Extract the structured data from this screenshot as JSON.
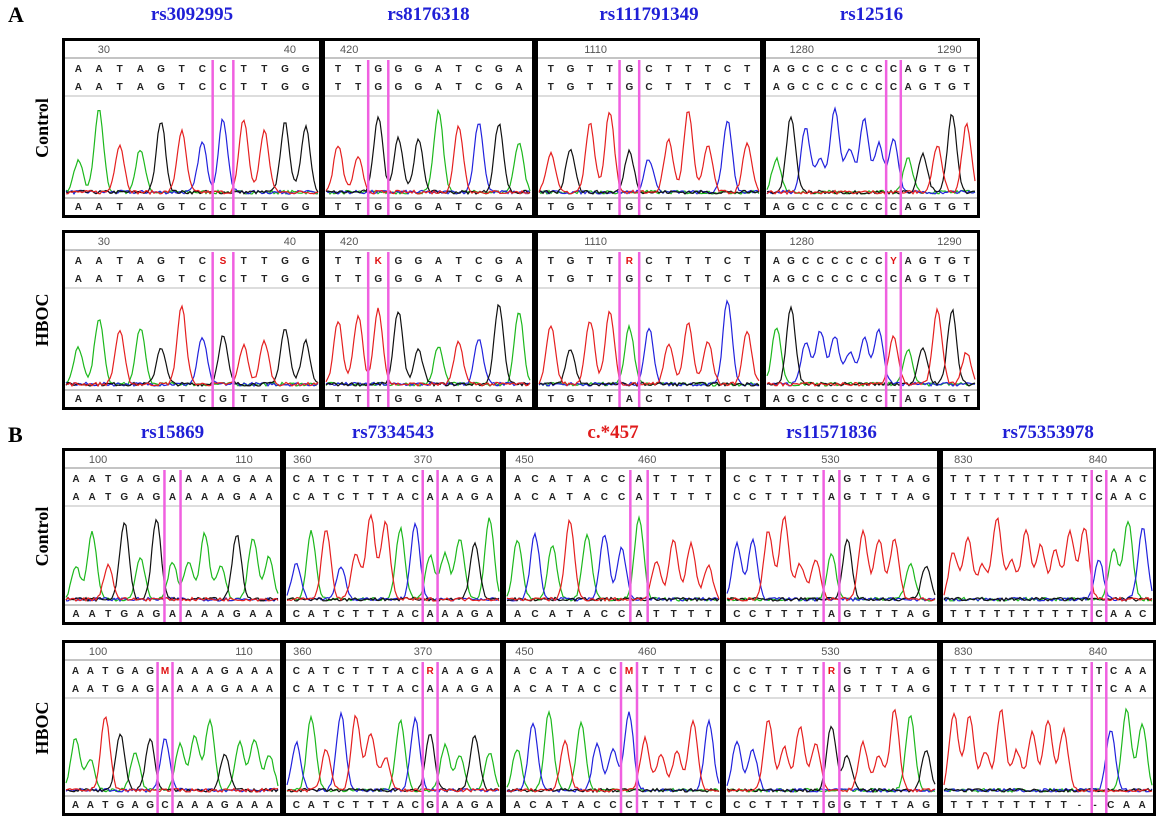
{
  "panels": [
    {
      "label": "A",
      "row_labels": [
        "Control",
        "HBOC"
      ],
      "columns": [
        {
          "title": "rs3092995",
          "title_color": "#1f1fd6",
          "ticks": [
            "30",
            "40"
          ],
          "rows": [
            {
              "top": [
                "AATAGTCCTTGG",
                "AATAGTCCTTGG"
              ],
              "bottom": "AATAGTCCTTGG"
            },
            {
              "top": [
                "AATAGTCSTTGG",
                "AATAGTCCTTGG"
              ],
              "bottom": "AATAGTCGTTGG"
            }
          ]
        },
        {
          "title": "rs8176318",
          "title_color": "#1f1fd6",
          "ticks": [
            "420"
          ],
          "rows": [
            {
              "top": [
                "TTGGGATCGA",
                "TTGGGATCGA"
              ],
              "bottom": "TTGGGATCGA"
            },
            {
              "top": [
                "TTKGGATCGA",
                "TTGGGATCGA"
              ],
              "bottom": "TTTGGATCGA"
            }
          ]
        },
        {
          "title": "rs111791349",
          "title_color": "#1f1fd6",
          "ticks": [
            "1110"
          ],
          "rows": [
            {
              "top": [
                "TGTTGCTTTCT",
                "TGTTGCTTTCT"
              ],
              "bottom": "TGTTGCTTTCT"
            },
            {
              "top": [
                "TGTTRCTTTCT",
                "TGTTGCTTTCT"
              ],
              "bottom": "TGTTACTTTCT"
            }
          ]
        },
        {
          "title": "rs12516",
          "title_color": "#1f1fd6",
          "ticks": [
            "1280",
            "1290"
          ],
          "rows": [
            {
              "top": [
                "AGCCCCCCCAGTGT",
                "AGCCCCCCCAGTGT"
              ],
              "bottom": "AGCCCCCCCAGTGT"
            },
            {
              "top": [
                "AGCCCCCCYAGTGT",
                "AGCCCCCCCAGTGT"
              ],
              "bottom": "AGCCCCCCTAGTGT"
            }
          ]
        }
      ]
    },
    {
      "label": "B",
      "row_labels": [
        "Control",
        "HBOC"
      ],
      "columns": [
        {
          "title": "rs15869",
          "title_color": "#1f1fd6",
          "ticks": [
            "100",
            "110"
          ],
          "rows": [
            {
              "top": [
                "AATGAGAAAAGAA",
                "AATGAGAAAAGAA"
              ],
              "bottom": "AATGAGAAAAGAA"
            },
            {
              "top": [
                "AATGAGMAAAGAAA",
                "AATGAGAAAAGAAA"
              ],
              "bottom": "AATGAGCAAAGAAA"
            }
          ]
        },
        {
          "title": "rs7334543",
          "title_color": "#1f1fd6",
          "ticks": [
            "360",
            "370"
          ],
          "rows": [
            {
              "top": [
                "CATCTTTACAAAGA",
                "CATCTTTACAAAGA"
              ],
              "bottom": "CATCTTTACAAAGA"
            },
            {
              "top": [
                "CATCTTTACRAAGA",
                "CATCTTTACAAAGA"
              ],
              "bottom": "CATCTTTACGAAGA"
            }
          ]
        },
        {
          "title": "c.*457",
          "title_color": "#e01b1b",
          "ticks": [
            "450",
            "460"
          ],
          "rows": [
            {
              "top": [
                "ACATACCATTTT",
                "ACATACCATTTT"
              ],
              "bottom": "ACATACCATTTT"
            },
            {
              "top": [
                "ACATACCMTTTTC",
                "ACATACCATTTTC"
              ],
              "bottom": "ACATACCCTTTTC"
            }
          ]
        },
        {
          "title": "rs11571836",
          "title_color": "#1f1fd6",
          "ticks": [
            "530"
          ],
          "rows": [
            {
              "top": [
                "CCTTTTAGTTTAG",
                "CCTTTTAGTTTAG"
              ],
              "bottom": "CCTTTTAGTTTAG"
            },
            {
              "top": [
                "CCTTTTRGTTTAG",
                "CCTTTTAGTTTAG"
              ],
              "bottom": "CCTTTTGGTTTAG"
            }
          ]
        },
        {
          "title": "rs75353978",
          "title_color": "#1f1fd6",
          "ticks": [
            "830",
            "840"
          ],
          "rows": [
            {
              "top": [
                "TTTTTTTTTTCAAC",
                "TTTTTTTTTTCAAC"
              ],
              "bottom": "TTTTTTTTTTCAAC"
            },
            {
              "top": [
                "TTTTTTTTTTTCAA",
                "TTTTTTTTTTTCAA"
              ],
              "bottom": "TTTTTTTT--CAA"
            }
          ]
        }
      ]
    }
  ]
}
